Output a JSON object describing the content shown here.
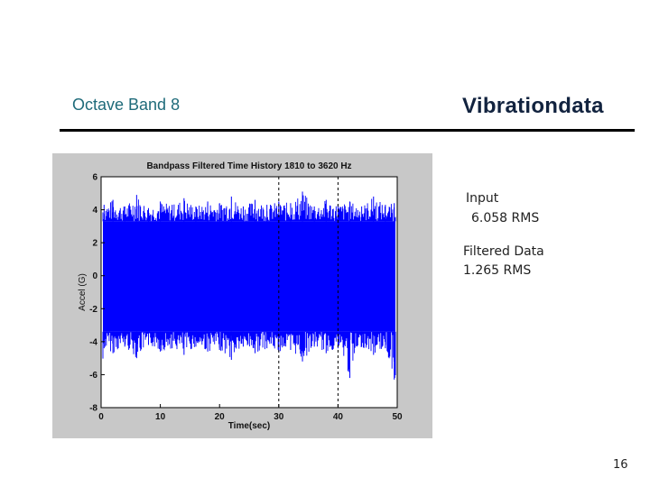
{
  "slide": {
    "band_title": "Octave Band 8",
    "brand": "Vibrationdata",
    "input_label": "Input",
    "input_value": "6.058 RMS",
    "filtered_label": "Filtered Data",
    "filtered_value": "1.265  RMS",
    "page_number": "16"
  },
  "colors": {
    "signal": "#0000ff",
    "figure_bg": "#c8c8c8",
    "title_teal": "#1f6b7a",
    "brand_navy": "#12233f"
  },
  "chart_data": {
    "type": "line",
    "title": "Bandpass Filtered Time History 1810 to 3620 Hz",
    "xlabel": "Time(sec)",
    "ylabel": "Accel (G)",
    "xlim": [
      0,
      50
    ],
    "ylim": [
      -8,
      6
    ],
    "xticks": [
      0,
      10,
      20,
      30,
      40,
      50
    ],
    "yticks": [
      6,
      4,
      2,
      0,
      -2,
      -4,
      -6,
      -8
    ],
    "series": [
      {
        "color": "#0000ff",
        "x": [
          0.5,
          2,
          4,
          6,
          8,
          10,
          12,
          14,
          16,
          18,
          20,
          22,
          24,
          26,
          28,
          30,
          32,
          34,
          36,
          38,
          40,
          42,
          44,
          46,
          48,
          49.5
        ],
        "y": [
          4.3,
          4.6,
          4.2,
          4.9,
          4.1,
          4.5,
          4.3,
          4.7,
          4.2,
          4.5,
          4.4,
          4.8,
          4.2,
          4.6,
          4.3,
          4.5,
          4.4,
          5.1,
          4.2,
          4.6,
          4.3,
          4.5,
          4.2,
          4.8,
          4.3,
          4.4
        ],
        "envelope_lower": [
          -4.4,
          -4.7,
          -4.3,
          -5.0,
          -4.2,
          -4.6,
          -4.4,
          -4.8,
          -4.3,
          -4.6,
          -4.5,
          -5.1,
          -4.3,
          -4.7,
          -4.4,
          -4.6,
          -4.5,
          -5.2,
          -4.3,
          -4.7,
          -4.4,
          -6.2,
          -4.3,
          -4.8,
          -4.4,
          -6.3
        ]
      }
    ],
    "reference_lines_x": [
      30,
      40,
      50
    ],
    "grid": false,
    "rms_values": {
      "input": 6.058,
      "filtered": 1.265
    }
  }
}
